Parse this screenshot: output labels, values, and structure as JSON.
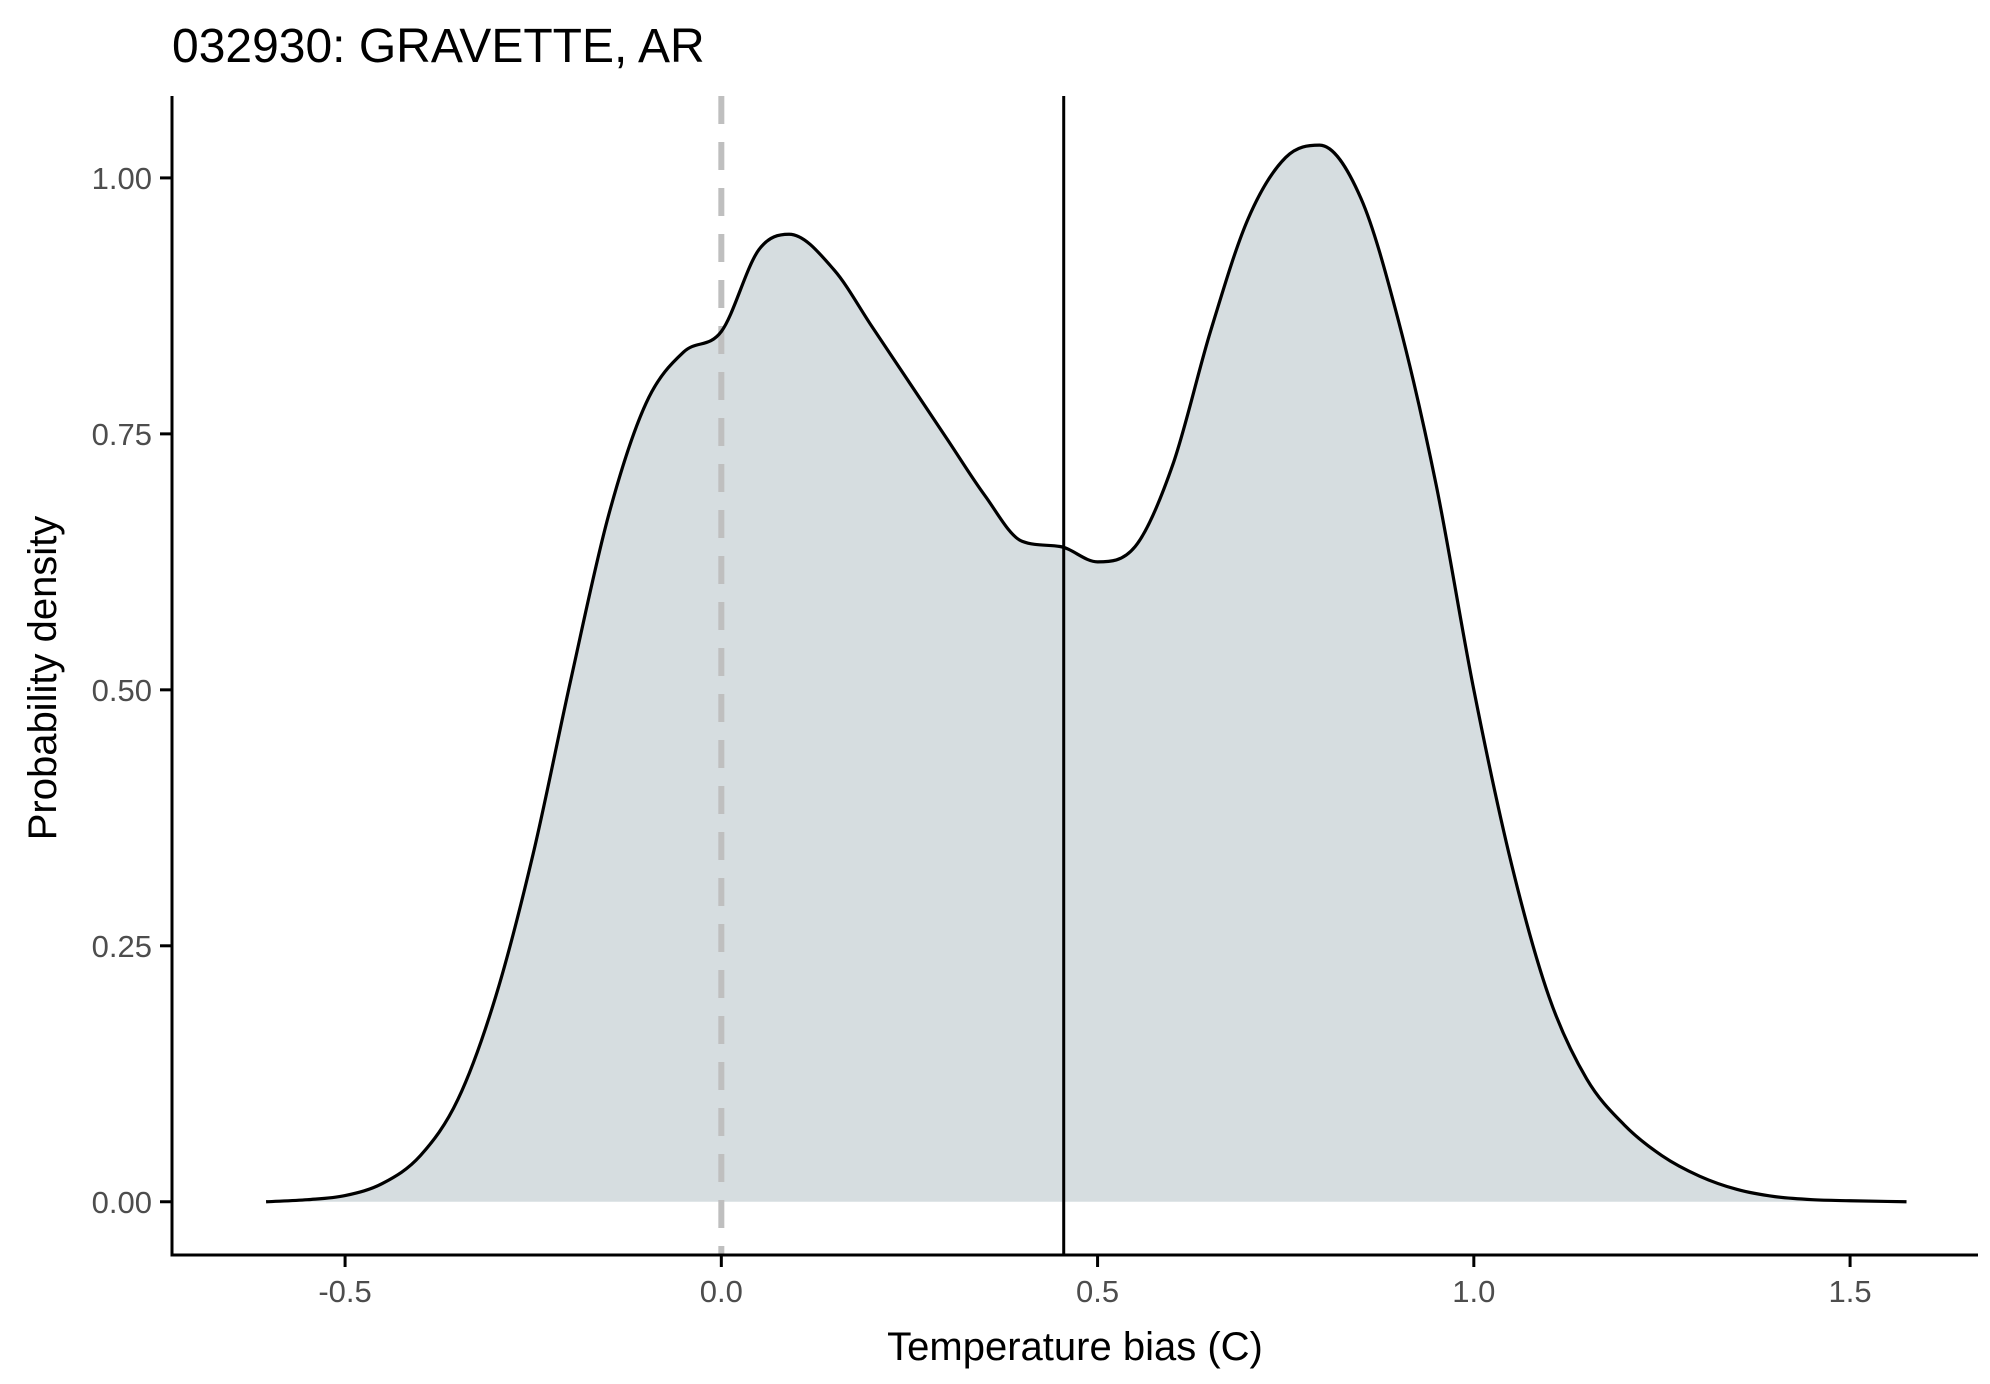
{
  "chart_data": {
    "type": "area",
    "title": "032930: GRAVETTE, AR",
    "xlabel": "Temperature bias (C)",
    "ylabel": "Probability density",
    "xlim": [
      -0.73,
      1.67
    ],
    "ylim": [
      -0.052,
      1.08
    ],
    "x_ticks": [
      -0.5,
      0.0,
      0.5,
      1.0,
      1.5
    ],
    "x_tick_labels": [
      "-0.5",
      "0.0",
      "0.5",
      "1.0",
      "1.5"
    ],
    "y_ticks": [
      0.0,
      0.25,
      0.5,
      0.75,
      1.0
    ],
    "y_tick_labels": [
      "0.00",
      "0.25",
      "0.50",
      "0.75",
      "1.00"
    ],
    "grid": false,
    "legend": "none",
    "colors": {
      "fill": "#d6dde0",
      "line": "#000000",
      "zero_line": "#bfbfbf",
      "mean_line": "#000000"
    },
    "reference_lines": [
      {
        "name": "zero",
        "x": 0.0,
        "style": "dashed",
        "color": "#bfbfbf"
      },
      {
        "name": "mean",
        "x": 0.455,
        "style": "solid",
        "color": "#000000"
      }
    ],
    "series": [
      {
        "x": [
          -0.605,
          -0.55,
          -0.5,
          -0.45,
          -0.4,
          -0.35,
          -0.3,
          -0.25,
          -0.2,
          -0.15,
          -0.1,
          -0.05,
          0.0,
          0.05,
          0.09,
          0.15,
          0.2,
          0.25,
          0.3,
          0.35,
          0.4,
          0.45,
          0.5,
          0.55,
          0.6,
          0.65,
          0.7,
          0.75,
          0.795,
          0.85,
          0.9,
          0.95,
          1.0,
          1.05,
          1.1,
          1.15,
          1.2,
          1.25,
          1.3,
          1.35,
          1.4,
          1.45,
          1.5,
          1.575
        ],
        "y": [
          0.0,
          0.002,
          0.006,
          0.018,
          0.045,
          0.1,
          0.2,
          0.34,
          0.51,
          0.67,
          0.78,
          0.83,
          0.85,
          0.93,
          0.945,
          0.91,
          0.855,
          0.8,
          0.745,
          0.69,
          0.645,
          0.64,
          0.625,
          0.64,
          0.72,
          0.85,
          0.96,
          1.02,
          1.032,
          0.98,
          0.86,
          0.7,
          0.5,
          0.33,
          0.2,
          0.12,
          0.075,
          0.045,
          0.025,
          0.012,
          0.005,
          0.002,
          0.001,
          0.0
        ]
      }
    ]
  }
}
